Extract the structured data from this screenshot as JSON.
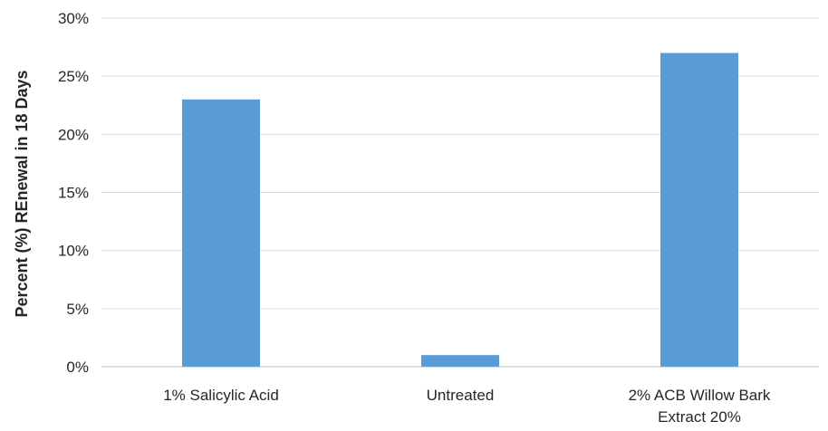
{
  "chart_data": {
    "type": "bar",
    "title": "",
    "xlabel": "",
    "ylabel": "Percent (%) REnewal in 18 Days",
    "categories": [
      [
        "1% Salicylic Acid"
      ],
      [
        "Untreated"
      ],
      [
        "2% ACB Willow Bark",
        "Extract 20%"
      ]
    ],
    "values": [
      0.23,
      0.01,
      0.27
    ],
    "ylim": [
      0,
      0.3
    ],
    "yticks": [
      0,
      0.05,
      0.1,
      0.15,
      0.2,
      0.25,
      0.3
    ],
    "ytick_labels": [
      "0%",
      "5%",
      "10%",
      "15%",
      "20%",
      "25%",
      "30%"
    ],
    "grid": true,
    "legend": "none",
    "bar_color": "#5b9bd5"
  }
}
